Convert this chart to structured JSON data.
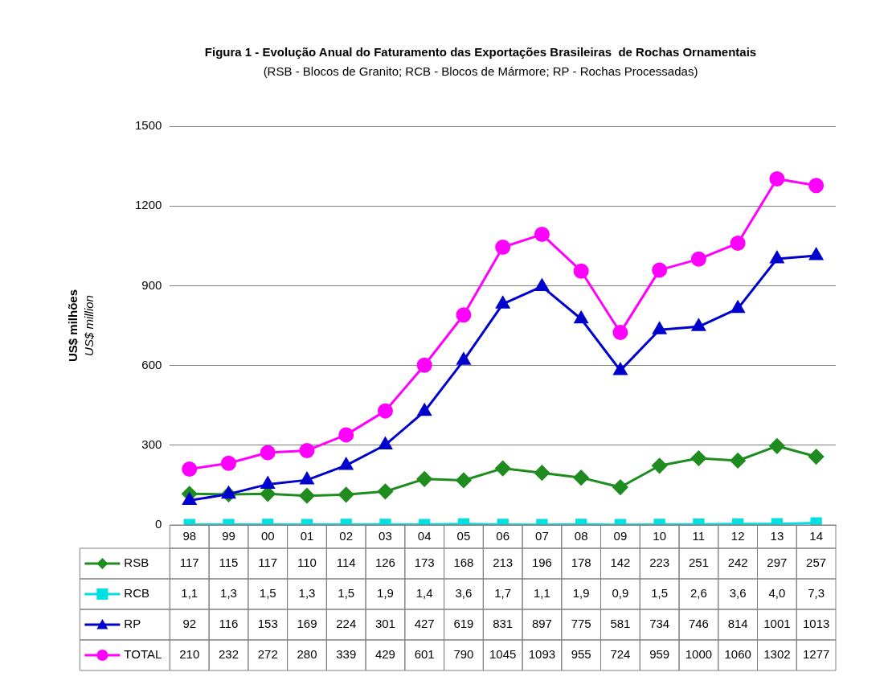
{
  "chart_data": {
    "type": "line",
    "title": "Figura 1 - Evolução Anual do Faturamento das Exportações Brasileiras  de Rochas Ornamentais",
    "subtitle": "(RSB - Blocos de Granito; RCB - Blocos de Mármore; RP - Rochas Processadas)",
    "ylabel": "US$ milhões\nUS$ million",
    "categories": [
      "98",
      "99",
      "00",
      "01",
      "02",
      "03",
      "04",
      "05",
      "06",
      "07",
      "08",
      "09",
      "10",
      "11",
      "12",
      "13",
      "14"
    ],
    "ylim": [
      0,
      1500
    ],
    "yticks": [
      0,
      300,
      600,
      900,
      1200,
      1500
    ],
    "grid": "y",
    "legend": "bottom",
    "line_style": "solid",
    "series": [
      {
        "name": "RSB",
        "color": "#1e8c1e",
        "marker": "diamond",
        "values": [
          117,
          115,
          117,
          110,
          114,
          126,
          173,
          168,
          213,
          196,
          178,
          142,
          223,
          251,
          242,
          297,
          257
        ],
        "value_labels": [
          "117",
          "115",
          "117",
          "110",
          "114",
          "126",
          "173",
          "168",
          "213",
          "196",
          "178",
          "142",
          "223",
          "251",
          "242",
          "297",
          "257"
        ]
      },
      {
        "name": "RCB",
        "color": "#00e0e0",
        "marker": "square",
        "values": [
          1.1,
          1.3,
          1.5,
          1.3,
          1.5,
          1.9,
          1.4,
          3.6,
          1.7,
          1.1,
          1.9,
          0.9,
          1.5,
          2.6,
          3.6,
          4.0,
          7.3
        ],
        "value_labels": [
          "1,1",
          "1,3",
          "1,5",
          "1,3",
          "1,5",
          "1,9",
          "1,4",
          "3,6",
          "1,7",
          "1,1",
          "1,9",
          "0,9",
          "1,5",
          "2,6",
          "3,6",
          "4,0",
          "7,3"
        ]
      },
      {
        "name": "RP",
        "color": "#0000cc",
        "marker": "triangle",
        "values": [
          92,
          116,
          153,
          169,
          224,
          301,
          427,
          619,
          831,
          897,
          775,
          581,
          734,
          746,
          814,
          1001,
          1013
        ],
        "value_labels": [
          "92",
          "116",
          "153",
          "169",
          "224",
          "301",
          "427",
          "619",
          "831",
          "897",
          "775",
          "581",
          "734",
          "746",
          "814",
          "1001",
          "1013"
        ]
      },
      {
        "name": "TOTAL",
        "color": "#ff00ff",
        "marker": "circle",
        "values": [
          210,
          232,
          272,
          280,
          339,
          429,
          601,
          790,
          1045,
          1093,
          955,
          724,
          959,
          1000,
          1060,
          1302,
          1277
        ],
        "value_labels": [
          "210",
          "232",
          "272",
          "280",
          "339",
          "429",
          "601",
          "790",
          "1045",
          "1093",
          "955",
          "724",
          "959",
          "1000",
          "1060",
          "1302",
          "1277"
        ]
      }
    ]
  }
}
